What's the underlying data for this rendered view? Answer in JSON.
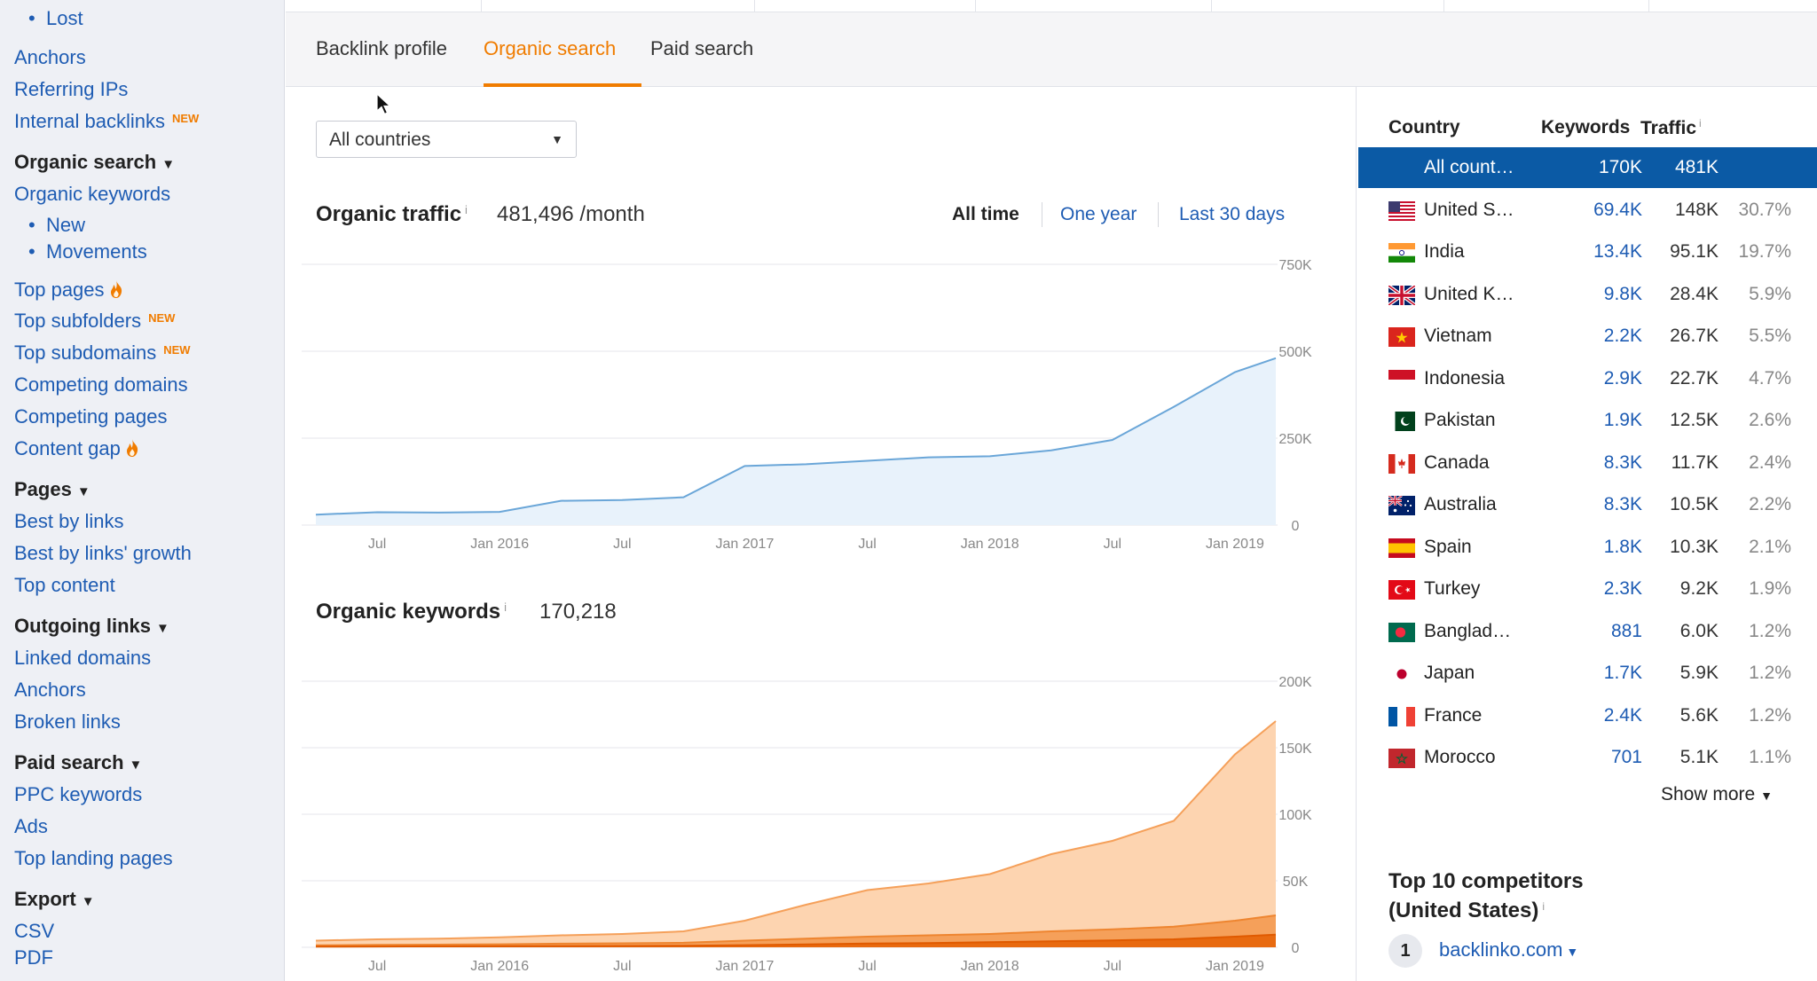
{
  "sidebar": {
    "lost": "Lost",
    "anchors": "Anchors",
    "referring_ips": "Referring IPs",
    "internal_backlinks": "Internal backlinks",
    "new_badge": "NEW",
    "organic_search_head": "Organic search",
    "organic_keywords": "Organic keywords",
    "new": "New",
    "movements": "Movements",
    "top_pages": "Top pages",
    "top_subfolders": "Top subfolders",
    "top_subdomains": "Top subdomains",
    "competing_domains": "Competing domains",
    "competing_pages": "Competing pages",
    "content_gap": "Content gap",
    "pages_head": "Pages",
    "best_by_links": "Best by links",
    "best_by_links_growth": "Best by links' growth",
    "top_content": "Top content",
    "outgoing_links_head": "Outgoing links",
    "linked_domains": "Linked domains",
    "anchors_2": "Anchors",
    "broken_links": "Broken links",
    "paid_search_head": "Paid search",
    "ppc_keywords": "PPC keywords",
    "ads": "Ads",
    "top_landing_pages": "Top landing pages",
    "export_head": "Export",
    "csv": "CSV",
    "pdf": "PDF"
  },
  "tabs": {
    "backlink_profile": "Backlink profile",
    "organic_search": "Organic search",
    "paid_search": "Paid search"
  },
  "filter": {
    "country": "All countries"
  },
  "traffic": {
    "title": "Organic traffic",
    "info": "i",
    "value": "481,496 /month",
    "ranges": {
      "all": "All time",
      "year": "One year",
      "month": "Last 30 days"
    }
  },
  "keywords": {
    "title": "Organic keywords",
    "info": "i",
    "value": "170,218"
  },
  "colors": {
    "accent": "#f07c00",
    "link": "#1e5cb3",
    "selected_row": "#0b5aa5",
    "traffic_line": "#6aa6d8",
    "traffic_fill": "#e8f2fb",
    "kw_light": "#fdd4b0",
    "kw_mid": "#f5a05a",
    "kw_dark": "#e86a10"
  },
  "chart_data": [
    {
      "type": "area",
      "title": "Organic traffic",
      "x_tick_labels": [
        "Jul",
        "Jan 2016",
        "Jul",
        "Jan 2017",
        "Jul",
        "Jan 2018",
        "Jul",
        "Jan 2019"
      ],
      "y_tick_labels": [
        "750K",
        "500K",
        "250K",
        "0"
      ],
      "ylim": [
        0,
        750000
      ],
      "grid": true,
      "x": [
        "2015-04",
        "2015-07",
        "2015-10",
        "2016-01",
        "2016-04",
        "2016-07",
        "2016-10",
        "2017-01",
        "2017-04",
        "2017-07",
        "2017-10",
        "2018-01",
        "2018-04",
        "2018-07",
        "2018-10",
        "2019-01",
        "2019-03"
      ],
      "series": [
        {
          "values": [
            30000,
            37000,
            36000,
            38000,
            70000,
            72000,
            80000,
            170000,
            175000,
            185000,
            195000,
            198000,
            215000,
            245000,
            340000,
            440000,
            480000
          ]
        }
      ]
    },
    {
      "type": "area",
      "title": "Organic keywords",
      "x_tick_labels": [
        "Jul",
        "Jan 2016",
        "Jul",
        "Jan 2017",
        "Jul",
        "Jan 2018",
        "Jul",
        "Jan 2019"
      ],
      "y_tick_labels": [
        "200K",
        "150K",
        "100K",
        "50K",
        "0"
      ],
      "ylim": [
        0,
        200000
      ],
      "grid": true,
      "x": [
        "2015-04",
        "2015-07",
        "2015-10",
        "2016-01",
        "2016-04",
        "2016-07",
        "2016-10",
        "2017-01",
        "2017-04",
        "2017-07",
        "2017-10",
        "2018-01",
        "2018-04",
        "2018-07",
        "2018-10",
        "2019-01",
        "2019-03"
      ],
      "series": [
        {
          "values": [
            5000,
            6000,
            6500,
            7500,
            9000,
            10000,
            12000,
            20000,
            32000,
            43000,
            48000,
            55000,
            70000,
            80000,
            95000,
            145000,
            170000
          ]
        },
        {
          "values": [
            1500,
            1800,
            2000,
            2300,
            2700,
            3000,
            3400,
            5000,
            6500,
            8000,
            9000,
            10000,
            12000,
            13500,
            15500,
            20000,
            24000
          ]
        },
        {
          "values": [
            500,
            600,
            700,
            800,
            900,
            1000,
            1200,
            1600,
            2200,
            2800,
            3200,
            3800,
            4500,
            5200,
            6000,
            8000,
            9500
          ]
        }
      ]
    }
  ],
  "country_table": {
    "headers": {
      "country": "Country",
      "keywords": "Keywords",
      "traffic": "Traffic",
      "info": "i"
    },
    "selected": {
      "name": "All count…",
      "keywords": "170K",
      "traffic": "481K"
    },
    "rows": [
      {
        "flag": "us-flag-icon",
        "name": "United S…",
        "keywords": "69.4K",
        "traffic": "148K",
        "pct": "30.7%"
      },
      {
        "flag": "in-flag-icon",
        "name": "India",
        "keywords": "13.4K",
        "traffic": "95.1K",
        "pct": "19.7%"
      },
      {
        "flag": "uk-flag-icon",
        "name": "United K…",
        "keywords": "9.8K",
        "traffic": "28.4K",
        "pct": "5.9%"
      },
      {
        "flag": "vn-flag-icon",
        "name": "Vietnam",
        "keywords": "2.2K",
        "traffic": "26.7K",
        "pct": "5.5%"
      },
      {
        "flag": "id-flag-icon",
        "name": "Indonesia",
        "keywords": "2.9K",
        "traffic": "22.7K",
        "pct": "4.7%"
      },
      {
        "flag": "pk-flag-icon",
        "name": "Pakistan",
        "keywords": "1.9K",
        "traffic": "12.5K",
        "pct": "2.6%"
      },
      {
        "flag": "ca-flag-icon",
        "name": "Canada",
        "keywords": "8.3K",
        "traffic": "11.7K",
        "pct": "2.4%"
      },
      {
        "flag": "au-flag-icon",
        "name": "Australia",
        "keywords": "8.3K",
        "traffic": "10.5K",
        "pct": "2.2%"
      },
      {
        "flag": "es-flag-icon",
        "name": "Spain",
        "keywords": "1.8K",
        "traffic": "10.3K",
        "pct": "2.1%"
      },
      {
        "flag": "tr-flag-icon",
        "name": "Turkey",
        "keywords": "2.3K",
        "traffic": "9.2K",
        "pct": "1.9%"
      },
      {
        "flag": "bd-flag-icon",
        "name": "Banglad…",
        "keywords": "881",
        "traffic": "6.0K",
        "pct": "1.2%"
      },
      {
        "flag": "jp-flag-icon",
        "name": "Japan",
        "keywords": "1.7K",
        "traffic": "5.9K",
        "pct": "1.2%"
      },
      {
        "flag": "fr-flag-icon",
        "name": "France",
        "keywords": "2.4K",
        "traffic": "5.6K",
        "pct": "1.2%"
      },
      {
        "flag": "ma-flag-icon",
        "name": "Morocco",
        "keywords": "701",
        "traffic": "5.1K",
        "pct": "1.1%"
      }
    ],
    "show_more": "Show more"
  },
  "competitors": {
    "title": "Top 10 competitors (United States)",
    "info": "i",
    "rank": "1",
    "first": "backlinko.com"
  }
}
